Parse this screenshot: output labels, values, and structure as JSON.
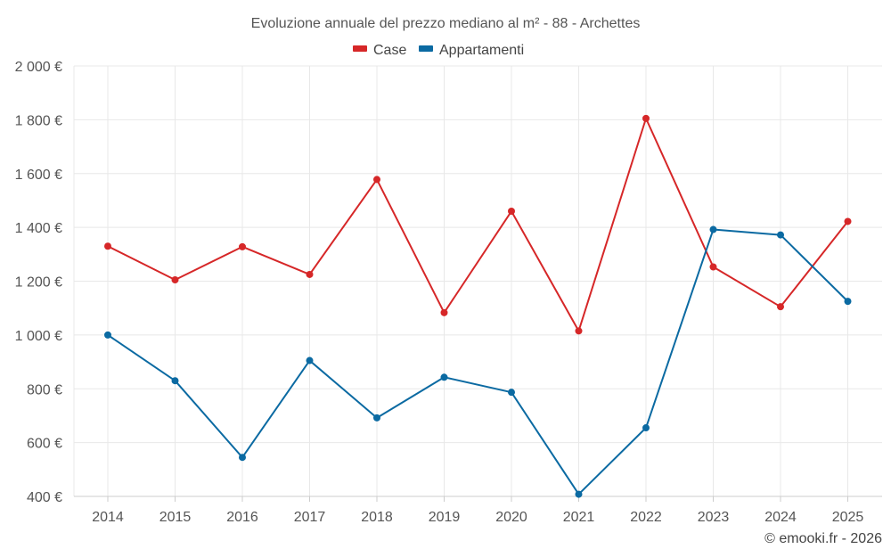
{
  "chart_data": {
    "type": "line",
    "title": "Evoluzione annuale del prezzo mediano al m² - 88 - Archettes",
    "categories": [
      "2014",
      "2015",
      "2016",
      "2017",
      "2018",
      "2019",
      "2020",
      "2021",
      "2022",
      "2023",
      "2024",
      "2025"
    ],
    "series": [
      {
        "name": "Case",
        "color": "#d62728",
        "values": [
          1330,
          1205,
          1328,
          1225,
          1578,
          1083,
          1460,
          1015,
          1805,
          1253,
          1105,
          1422
        ]
      },
      {
        "name": "Appartamenti",
        "color": "#0b6aa2",
        "values": [
          1000,
          830,
          545,
          905,
          692,
          843,
          787,
          408,
          655,
          1392,
          1372,
          1125
        ]
      }
    ],
    "ylim": [
      400,
      2000
    ],
    "yticks": [
      400,
      600,
      800,
      1000,
      1200,
      1400,
      1600,
      1800,
      2000
    ],
    "ytick_labels": [
      "400 €",
      "600 €",
      "800 €",
      "1 000 €",
      "1 200 €",
      "1 400 €",
      "1 600 €",
      "1 800 €",
      "2 000 €"
    ],
    "grid": true,
    "legend_position": "top-center",
    "credit": "© emooki.fr - 2026"
  }
}
